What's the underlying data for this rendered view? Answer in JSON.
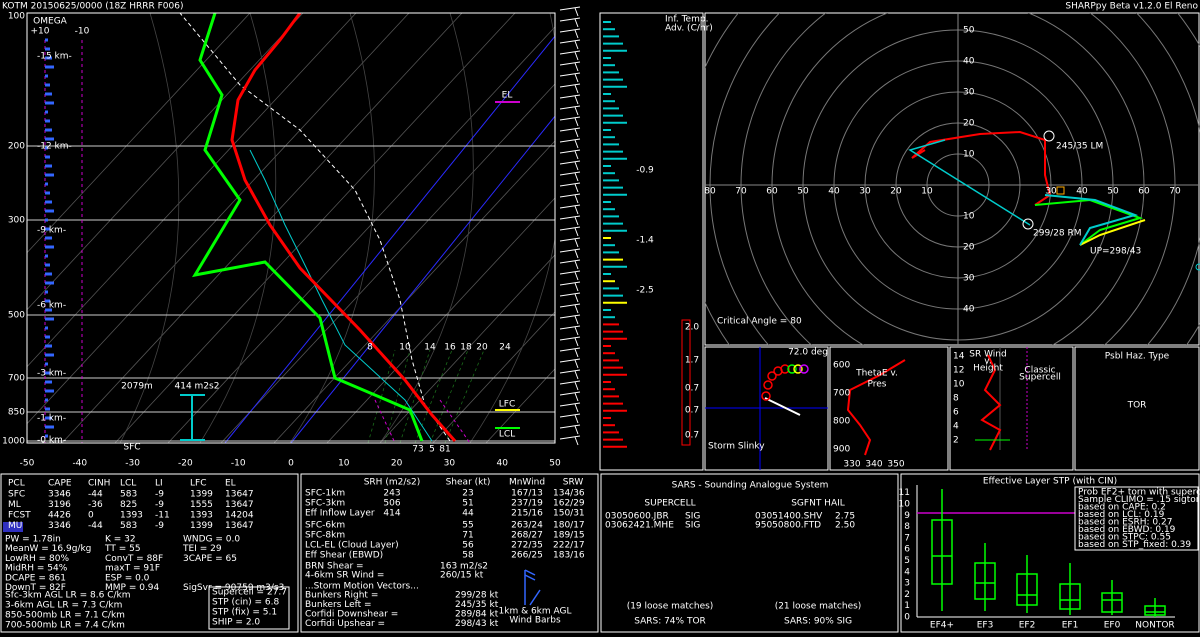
{
  "header": {
    "station": "KOTM  20150625/0000  (18Z  HRRR  F006)",
    "version": "SHARPpy Beta v1.2.0 El Reno"
  },
  "skewt": {
    "pressure_labels": [
      "100",
      "200",
      "300",
      "500",
      "700",
      "850",
      "1000"
    ],
    "temp_labels": [
      "-50",
      "-40",
      "-30",
      "-20",
      "-10",
      "0",
      "10",
      "20",
      "30",
      "40",
      "50"
    ],
    "height_labels": [
      "-15 km-",
      "-12 km-",
      "-9 km-",
      "-6 km-",
      "-3 km-",
      "-1 km-",
      "-0 km-"
    ],
    "omega": "OMEGA",
    "omega_ticks": [
      "+10",
      "-10"
    ],
    "el": "EL",
    "lfc": "LFC",
    "lcl": "LCL",
    "sfc": "SFC",
    "eff_depth": "2079m",
    "eff_srh": "414 m2s2",
    "sfc_temp": "73",
    "sfc_wetbulb": "5",
    "sfc_dewpt": "81",
    "mixing_ratio_labels": [
      "8",
      "10",
      "14",
      "16",
      "18",
      "20",
      "24"
    ]
  },
  "advection": {
    "title": [
      "Inf. Temp.",
      "Adv. (C/hr)"
    ],
    "values": [
      "-0.9",
      "-1.4",
      "-2.5",
      "2.0",
      "1.7",
      "0.7",
      "0.7",
      "0.7"
    ]
  },
  "hodograph": {
    "x_left": [
      "80",
      "70",
      "60",
      "50",
      "40",
      "30",
      "20",
      "10"
    ],
    "x_right": [
      "30",
      "40",
      "50",
      "60",
      "70"
    ],
    "y_top": [
      "50",
      "40",
      "30",
      "20",
      "10"
    ],
    "y_bottom": [
      "10",
      "20",
      "30",
      "40"
    ],
    "left_mover": "245/35 LM",
    "right_mover": "299/28 RM",
    "upshear": "UP=298/43",
    "critical_angle": "Critical Angle = 80"
  },
  "slinky": {
    "angle": "72.0 deg",
    "title": "Storm Slinky"
  },
  "thetae": {
    "title": [
      "ThetaE v.",
      "Pres"
    ],
    "y_labels": [
      "600",
      "700",
      "800",
      "900"
    ],
    "x_labels": [
      "330",
      "340",
      "350"
    ]
  },
  "srwind": {
    "title": [
      "SR Wind",
      "v.",
      "Height"
    ],
    "y_labels": [
      "14",
      "12",
      "10",
      "8",
      "6",
      "4",
      "2"
    ],
    "note": [
      "Classic",
      "Supercell"
    ]
  },
  "hazard": {
    "title": "Psbl Haz. Type",
    "type": "TOR"
  },
  "thermo": {
    "headers": [
      "PCL",
      "CAPE",
      "CINH",
      "LCL",
      "LI",
      "LFC",
      "EL"
    ],
    "rows": [
      [
        "SFC",
        "3346",
        "-44",
        "583",
        "-9",
        "1399",
        "13647"
      ],
      [
        "ML",
        "3196",
        "-36",
        "825",
        "-9",
        "1555",
        "13647"
      ],
      [
        "FCST",
        "4426",
        "0",
        "1393",
        "-11",
        "1393",
        "14204"
      ],
      [
        "MU",
        "3346",
        "-44",
        "583",
        "-9",
        "1399",
        "13647"
      ]
    ],
    "indices": [
      [
        "PW = 1.78in",
        "K = 32",
        "WNDG = 0.0"
      ],
      [
        "MeanW = 16.9g/kg",
        "TT = 55",
        "TEI = 29"
      ],
      [
        "LowRH = 80%",
        "ConvT = 88F",
        "3CAPE = 65"
      ],
      [
        "MidRH = 54%",
        "maxT = 91F"
      ],
      [
        "DCAPE = 861",
        "ESP = 0.0"
      ],
      [
        "DownT = 82F",
        "MMP = 0.94",
        "SigSvr = 90759 m3/s3"
      ]
    ],
    "lapse_rates": [
      "Sfc-3km AGL LR = 8.6 C/km",
      "3-6km AGL LR = 7.3 C/km",
      "850-500mb LR = 7.1 C/km",
      "700-500mb LR = 7.4 C/km"
    ],
    "composites": [
      "Supercell = 27.7",
      "STP (cin) = 6.8",
      "STP (fix) = 5.1",
      "SHIP = 2.0"
    ]
  },
  "kinematic": {
    "headers": [
      "SRH (m2/s2)",
      "Shear (kt)",
      "MnWind",
      "SRW"
    ],
    "rows": [
      {
        "label": "SFC-1km",
        "srh": "243",
        "shear": "23",
        "mnwind": "167/13",
        "srw": "134/36"
      },
      {
        "label": "SFC-3km",
        "srh": "506",
        "shear": "51",
        "mnwind": "237/19",
        "srw": "162/29"
      },
      {
        "label": "Eff Inflow Layer",
        "srh": "414",
        "shear": "44",
        "mnwind": "215/16",
        "srw": "150/31"
      },
      {
        "label": "SFC-6km",
        "shear": "55",
        "mnwind": "263/24",
        "srw": "180/17"
      },
      {
        "label": "SFC-8km",
        "shear": "71",
        "mnwind": "268/27",
        "srw": "189/15"
      },
      {
        "label": "LCL-EL (Cloud Layer)",
        "shear": "56",
        "mnwind": "272/35",
        "srw": "222/17"
      },
      {
        "label": "Eff Shear (EBWD)",
        "shear": "58",
        "mnwind": "266/25",
        "srw": "183/16"
      }
    ],
    "extra": [
      [
        "BRN Shear =",
        "163 m2/s2"
      ],
      [
        "4-6km SR Wind =",
        "260/15 kt"
      ]
    ],
    "motion_title": "...Storm Motion Vectors...",
    "motion": [
      [
        "Bunkers Right =",
        "299/28 kt"
      ],
      [
        "Bunkers Left =",
        "245/35 kt"
      ],
      [
        "Corfidi Downshear =",
        "289/84 kt"
      ],
      [
        "Corfidi Upshear =",
        "298/43 kt"
      ]
    ],
    "barb_note": [
      "1km & 6km AGL",
      "Wind Barbs"
    ]
  },
  "sars": {
    "title": "SARS - Sounding Analogue System",
    "supercell": {
      "title": "SUPERCELL",
      "matches": [
        [
          "03050600.JBR",
          "SIG"
        ],
        [
          "03062421.MHE",
          "SIG"
        ]
      ],
      "loose": "(19 loose matches)",
      "result": "SARS: 74% TOR"
    },
    "hail": {
      "title": "SGFNT HAIL",
      "matches": [
        [
          "03051400.SHV",
          "2.75"
        ],
        [
          "95050800.FTD",
          "2.50"
        ]
      ],
      "loose": "(21 loose matches)",
      "result": "SARS: 90% SIG"
    }
  },
  "stp": {
    "title": "Effective Layer STP (with CIN)",
    "y_labels": [
      "0",
      "1",
      "2",
      "3",
      "4",
      "5",
      "6",
      "7",
      "8",
      "9",
      "10",
      "11"
    ],
    "categories": [
      "EF4+",
      "EF3",
      "EF2",
      "EF1",
      "EF0",
      "NONTOR"
    ],
    "legend": [
      "Prob EF2+ torn with supercell",
      "Sample CLIMO = .15 sigtor",
      "based on CAPE: 0.2",
      "based on LCL: 0.19",
      "based on ESRH: 0.27",
      "based on EBWD: 0.19",
      "based on STPC: 0.55",
      "based on STP_fixed: 0.39"
    ]
  }
}
